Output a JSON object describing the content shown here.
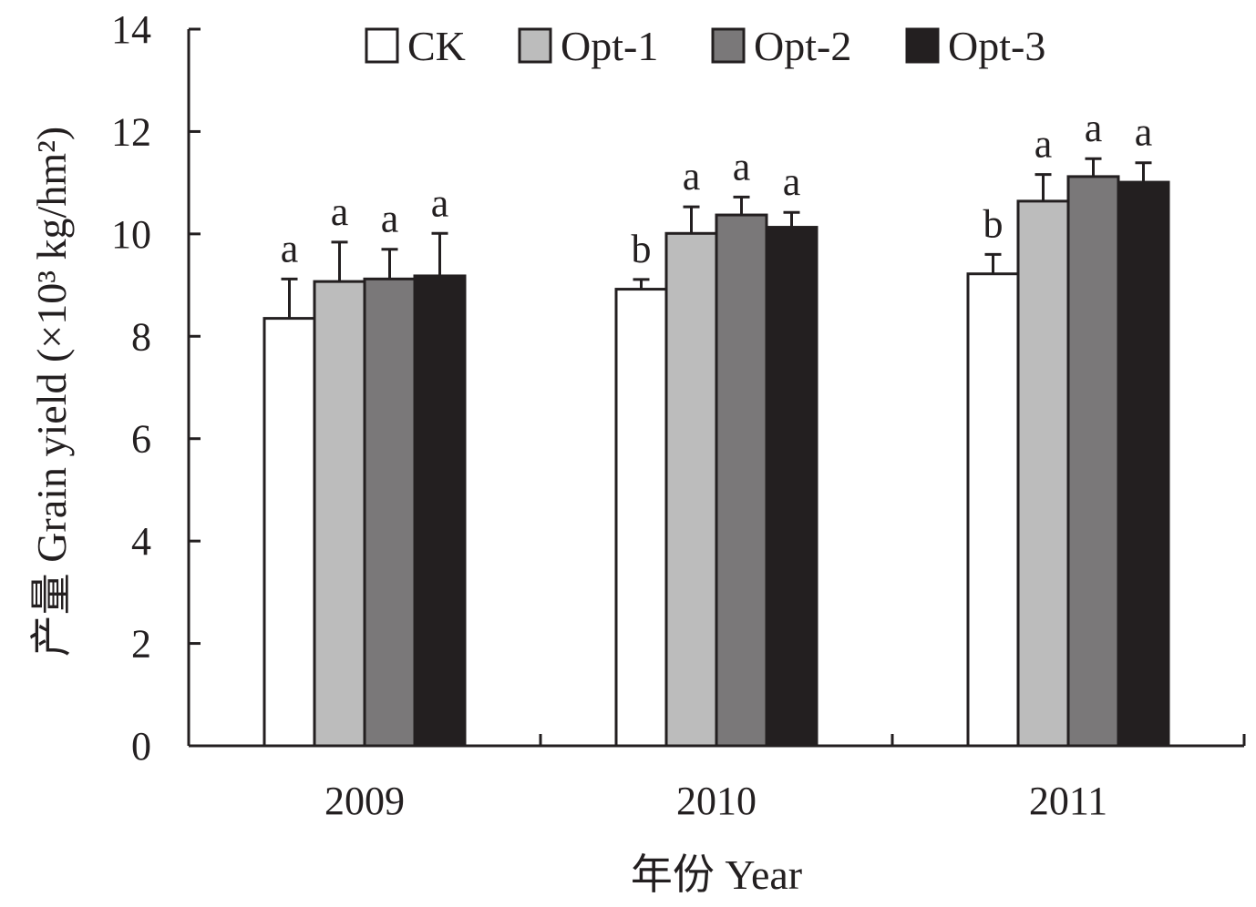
{
  "chart_data": {
    "type": "bar",
    "title": "",
    "xlabel": "年份 Year",
    "ylabel": "产量 Grain yield (×10³ kg/hm²)",
    "ylim": [
      0,
      14
    ],
    "yticks": [
      0,
      2,
      4,
      6,
      8,
      10,
      12,
      14
    ],
    "categories": [
      "2009",
      "2010",
      "2011"
    ],
    "legend_position": "top",
    "grid": false,
    "series": [
      {
        "name": "CK",
        "color": "#ffffff",
        "values": [
          8.35,
          8.92,
          9.22
        ],
        "errors": [
          0.77,
          0.19,
          0.38
        ],
        "letters": [
          "a",
          "b",
          "b"
        ]
      },
      {
        "name": "Opt-1",
        "color": "#bcbcbc",
        "values": [
          9.07,
          10.01,
          10.64
        ],
        "errors": [
          0.77,
          0.52,
          0.52
        ],
        "letters": [
          "a",
          "a",
          "a"
        ]
      },
      {
        "name": "Opt-2",
        "color": "#7a7879",
        "values": [
          9.12,
          10.37,
          11.12
        ],
        "errors": [
          0.58,
          0.35,
          0.35
        ],
        "letters": [
          "a",
          "a",
          "a"
        ]
      },
      {
        "name": "Opt-3",
        "color": "#231f20",
        "values": [
          9.18,
          10.13,
          11.01
        ],
        "errors": [
          0.83,
          0.29,
          0.38
        ],
        "letters": [
          "a",
          "a",
          "a"
        ]
      }
    ]
  }
}
